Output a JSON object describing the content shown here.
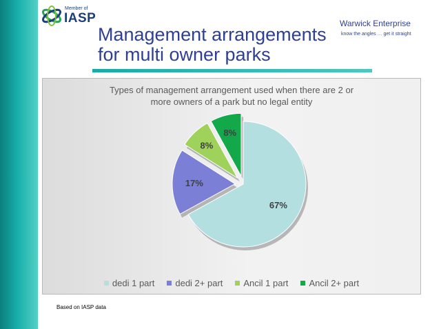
{
  "logo": {
    "member_text": "Member of",
    "name": "IASP"
  },
  "slide": {
    "title_line1": "Management arrangements",
    "title_line2": "for multi owner parks"
  },
  "brand": {
    "name": "Warwick Enterprise",
    "tagline": "know the angles … get it straight"
  },
  "footnote": "Based on IASP data",
  "colors": {
    "accent_teal": "#17aeaa",
    "title_blue": "#2e3f94"
  },
  "chart_data": {
    "type": "pie",
    "title_lines": [
      "Types of management arrangement used when there are 2 or",
      "more owners of a park but no legal entity"
    ],
    "categories": [
      "dedi 1 part",
      "dedi 2+ part",
      "Ancil 1 part",
      "Ancil 2+ part"
    ],
    "values": [
      67,
      17,
      8,
      8
    ],
    "labels": [
      "67%",
      "17%",
      "8%",
      "8%"
    ],
    "colors": [
      "#b3dfe0",
      "#7b7fd6",
      "#9ed25a",
      "#13a84a"
    ],
    "exploded": [
      false,
      true,
      true,
      true
    ],
    "legend_position": "bottom"
  }
}
